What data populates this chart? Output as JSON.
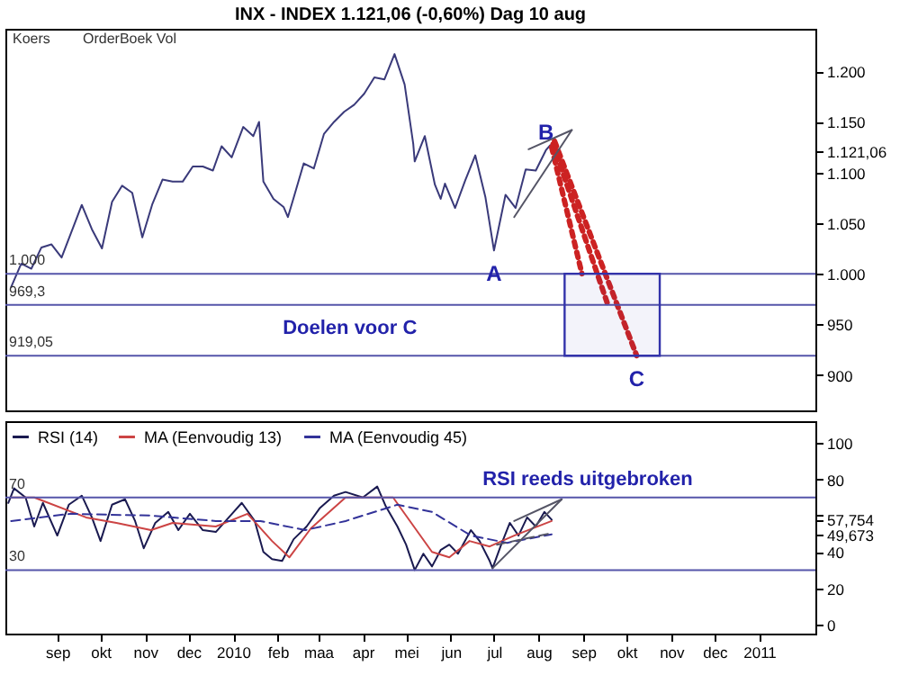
{
  "chart_data": [
    {
      "type": "line",
      "title": "INX - INDEX 1.121,06 (-0,60%) Dag 10 aug",
      "annotations": [
        "Koers",
        "OrderBoek Vol",
        {
          "text": "A",
          "x": "2010-07-01",
          "y": 1023
        },
        {
          "text": "B",
          "x": "2010-08-06",
          "y": 1122
        },
        {
          "text": "C",
          "x": "2010-10-08",
          "y": 919.05
        },
        {
          "text": "Doelen voor C",
          "x": "2010-03-23",
          "y": 969.3
        }
      ],
      "xlim": [
        "2009-07-27",
        "2011-02-09"
      ],
      "ylim": [
        865,
        1242
      ],
      "yticks": [
        900,
        950,
        {
          "value": 1000,
          "label": "1.000"
        },
        {
          "value": 1050,
          "label": "1.050"
        },
        {
          "value": 1100,
          "label": "1.100"
        },
        {
          "value": 1121.06,
          "label": "1.121,06"
        },
        {
          "value": 1150,
          "label": "1.150"
        },
        {
          "value": 1200,
          "label": "1.200"
        }
      ],
      "tick_labels": "y",
      "series": [
        {
          "color": "#3a3a7a",
          "x": [
            "2009-07-31",
            "2009-08-07",
            "2009-08-14",
            "2009-08-21",
            "2009-08-28",
            "2009-09-04",
            "2009-09-11",
            "2009-09-18",
            "2009-09-25",
            "2009-10-02",
            "2009-10-09",
            "2009-10-16",
            "2009-10-23",
            "2009-10-30",
            "2009-11-06",
            "2009-11-13",
            "2009-11-20",
            "2009-11-27",
            "2009-12-04",
            "2009-12-11",
            "2009-12-18",
            "2009-12-24",
            "2009-12-31",
            "2010-01-08",
            "2010-01-15",
            "2010-01-19",
            "2010-01-22",
            "2010-01-29",
            "2010-02-05",
            "2010-02-08",
            "2010-02-12",
            "2010-02-19",
            "2010-02-26",
            "2010-03-05",
            "2010-03-12",
            "2010-03-19",
            "2010-03-26",
            "2010-04-02",
            "2010-04-09",
            "2010-04-16",
            "2010-04-23",
            "2010-04-30",
            "2010-05-06",
            "2010-05-07",
            "2010-05-14",
            "2010-05-21",
            "2010-05-25",
            "2010-05-28",
            "2010-06-04",
            "2010-06-11",
            "2010-06-18",
            "2010-06-25",
            "2010-07-01",
            "2010-07-09",
            "2010-07-16",
            "2010-07-23",
            "2010-07-30",
            "2010-08-06",
            "2010-08-09",
            "2010-08-10"
          ],
          "values": [
            987,
            1010,
            1005,
            1026,
            1029,
            1016,
            1042,
            1068,
            1044,
            1025,
            1071,
            1087,
            1080,
            1036,
            1069,
            1093,
            1091,
            1091,
            1106,
            1106,
            1102,
            1126,
            1115,
            1145,
            1136,
            1150,
            1091,
            1074,
            1066,
            1056,
            1075,
            1109,
            1104,
            1138,
            1150,
            1160,
            1167,
            1178,
            1194,
            1192,
            1217,
            1187,
            1128,
            1111,
            1136,
            1088,
            1074,
            1089,
            1065,
            1092,
            1117,
            1076,
            1023,
            1078,
            1065,
            1103,
            1102,
            1122,
            1127,
            1121.06
          ]
        },
        {
          "color": "#cc2222",
          "line_style": "dotted",
          "x": [
            "2010-08-10",
            "2010-08-31"
          ],
          "values": [
            1125,
            1000
          ]
        },
        {
          "color": "#cc2222",
          "line_style": "dotted",
          "x": [
            "2010-08-11",
            "2010-09-18"
          ],
          "values": [
            1128,
            969.3
          ]
        },
        {
          "color": "#cc2222",
          "line_style": "dotted",
          "x": [
            "2010-08-12",
            "2010-10-08"
          ],
          "values": [
            1131,
            919.05
          ]
        },
        {
          "color": "#555566",
          "x": [
            "2010-07-15",
            "2010-08-24"
          ],
          "values": [
            1056,
            1142
          ]
        },
        {
          "color": "#555566",
          "x": [
            "2010-07-25",
            "2010-08-24"
          ],
          "values": [
            1123,
            1142
          ]
        }
      ],
      "ref_lines": [
        {
          "axis": "y",
          "value": 1000,
          "label": "1.000"
        },
        {
          "axis": "y",
          "value": 969.3,
          "label": "969,3"
        },
        {
          "axis": "y",
          "value": 919.05,
          "label": "919,05"
        }
      ],
      "bands": [
        {
          "axis": "x",
          "from": "2010-08-19",
          "to": "2010-10-24"
        }
      ]
    },
    {
      "type": "line",
      "legend": "top left",
      "annotations": [
        {
          "text": "RSI reeds uitgebroken",
          "x": "2010-09-04",
          "y": 70
        }
      ],
      "xlim": [
        "2009-07-27",
        "2011-02-09"
      ],
      "ylim": [
        -5,
        112
      ],
      "xticks": [
        {
          "value": "2009-09-01",
          "label": "sep"
        },
        {
          "value": "2009-10-01",
          "label": "okt"
        },
        {
          "value": "2009-11-01",
          "label": "nov"
        },
        {
          "value": "2009-12-01",
          "label": "dec"
        },
        {
          "value": "2010-01-01",
          "label": "2010"
        },
        {
          "value": "2010-02-01",
          "label": "feb"
        },
        {
          "value": "2010-03-01",
          "label": "maa"
        },
        {
          "value": "2010-04-01",
          "label": "apr"
        },
        {
          "value": "2010-05-01",
          "label": "mei"
        },
        {
          "value": "2010-06-01",
          "label": "jun"
        },
        {
          "value": "2010-07-01",
          "label": "jul"
        },
        {
          "value": "2010-08-01",
          "label": "aug"
        },
        {
          "value": "2010-09-01",
          "label": "sep"
        },
        {
          "value": "2010-10-01",
          "label": "okt"
        },
        {
          "value": "2010-11-01",
          "label": "nov"
        },
        {
          "value": "2010-12-01",
          "label": "dec"
        },
        {
          "value": "2011-01-01",
          "label": "2011"
        }
      ],
      "yticks": [
        0,
        20,
        40,
        {
          "value": 49.673,
          "label": "49,673"
        },
        {
          "value": 57.754,
          "label": "57,754"
        },
        {
          "value": 60,
          "label": null
        },
        80,
        100
      ],
      "series": [
        {
          "name": "RSI (14)",
          "color": "#1a1a50",
          "x": [
            "2009-07-29",
            "2009-08-02",
            "2009-08-10",
            "2009-08-16",
            "2009-08-22",
            "2009-09-01",
            "2009-09-09",
            "2009-09-18",
            "2009-09-25",
            "2009-10-01",
            "2009-10-09",
            "2009-10-18",
            "2009-10-25",
            "2009-10-31",
            "2009-11-08",
            "2009-11-17",
            "2009-11-24",
            "2009-12-02",
            "2009-12-11",
            "2009-12-20",
            "2009-12-29",
            "2010-01-07",
            "2010-01-16",
            "2010-01-22",
            "2010-01-28",
            "2010-02-04",
            "2010-02-12",
            "2010-02-21",
            "2010-03-02",
            "2010-03-12",
            "2010-03-20",
            "2010-04-01",
            "2010-04-11",
            "2010-04-17",
            "2010-04-25",
            "2010-05-01",
            "2010-05-07",
            "2010-05-13",
            "2010-05-19",
            "2010-05-25",
            "2010-05-31",
            "2010-06-06",
            "2010-06-15",
            "2010-06-21",
            "2010-06-28",
            "2010-06-30",
            "2010-07-06",
            "2010-07-12",
            "2010-07-18",
            "2010-07-24",
            "2010-07-30",
            "2010-08-05",
            "2010-08-10"
          ],
          "values": [
            67,
            75,
            70,
            54,
            67,
            49,
            66,
            71,
            59,
            46,
            66,
            69,
            57,
            42,
            56,
            62,
            52,
            61,
            52,
            51,
            59,
            67,
            57,
            40,
            36,
            35,
            47,
            54,
            64,
            71,
            73,
            70,
            76,
            65,
            54,
            44,
            30,
            39,
            32,
            41,
            44,
            39,
            52,
            46,
            35,
            31,
            44,
            56,
            49,
            59,
            54,
            62,
            57.754
          ]
        },
        {
          "name": "MA (Eenvoudig 13)",
          "color": "#cc4444",
          "x": [
            "2009-07-31",
            "2009-08-16",
            "2009-09-21",
            "2009-10-12",
            "2009-11-05",
            "2009-11-20",
            "2009-12-20",
            "2010-01-11",
            "2010-01-28",
            "2010-02-09",
            "2010-02-24",
            "2010-03-20",
            "2010-04-22",
            "2010-05-19",
            "2010-05-31",
            "2010-06-14",
            "2010-06-28",
            "2010-07-15",
            "2010-08-10"
          ],
          "values": [
            70,
            70,
            59,
            56,
            52,
            56,
            54,
            61,
            46,
            37,
            53,
            70,
            70,
            40,
            37,
            46,
            43,
            49,
            57
          ]
        },
        {
          "name": "MA (Eenvoudig 45)",
          "color": "#333399",
          "line_style": "dashed",
          "x": [
            "2009-07-31",
            "2009-09-10",
            "2009-11-05",
            "2009-12-20",
            "2010-01-20",
            "2010-02-20",
            "2010-03-20",
            "2010-04-25",
            "2010-05-19",
            "2010-06-15",
            "2010-07-10",
            "2010-08-10"
          ],
          "values": [
            57,
            61,
            60,
            57,
            57,
            52,
            57,
            66,
            62,
            49,
            45,
            49.673
          ]
        },
        {
          "color": "#555566",
          "x": [
            "2010-06-30",
            "2010-08-17"
          ],
          "values": [
            31,
            69
          ]
        },
        {
          "color": "#555566",
          "x": [
            "2010-07-15",
            "2010-08-17"
          ],
          "values": [
            57,
            69
          ]
        },
        {
          "color": "#555566",
          "line_style": "dashed",
          "x": [
            "2010-07-03",
            "2010-08-08"
          ],
          "values": [
            44,
            50
          ]
        }
      ],
      "ref_lines": [
        {
          "axis": "y",
          "value": 70,
          "label": "70"
        },
        {
          "axis": "y",
          "value": 30,
          "label": "30"
        }
      ]
    }
  ]
}
